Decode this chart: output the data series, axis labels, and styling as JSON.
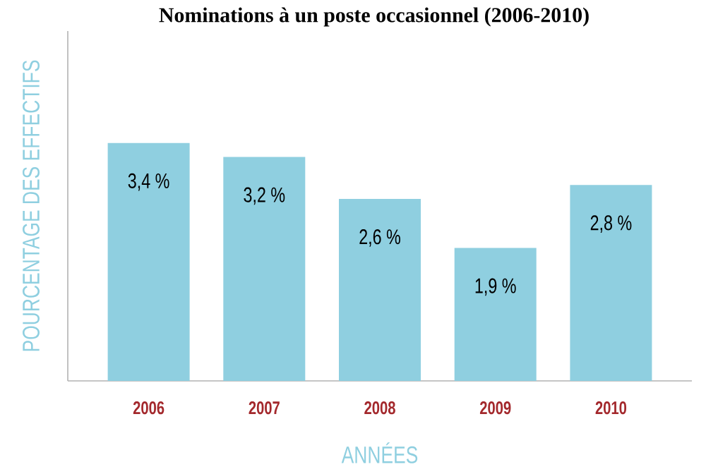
{
  "chart_data": {
    "type": "bar",
    "title": "Nominations à un poste occasionnel (2006-2010)",
    "xlabel": "ANNÉES",
    "ylabel": "POURCENTAGE DES EFFECTIFS",
    "categories": [
      "2006",
      "2007",
      "2008",
      "2009",
      "2010"
    ],
    "values": [
      3.4,
      3.2,
      2.6,
      1.9,
      2.8
    ],
    "value_labels": [
      "3,4 %",
      "3,2 %",
      "2,6 %",
      "1,9 %",
      "2,8 %"
    ],
    "color": "#8fcfe0",
    "ylim": [
      0,
      5
    ],
    "tick_labels": "x"
  }
}
